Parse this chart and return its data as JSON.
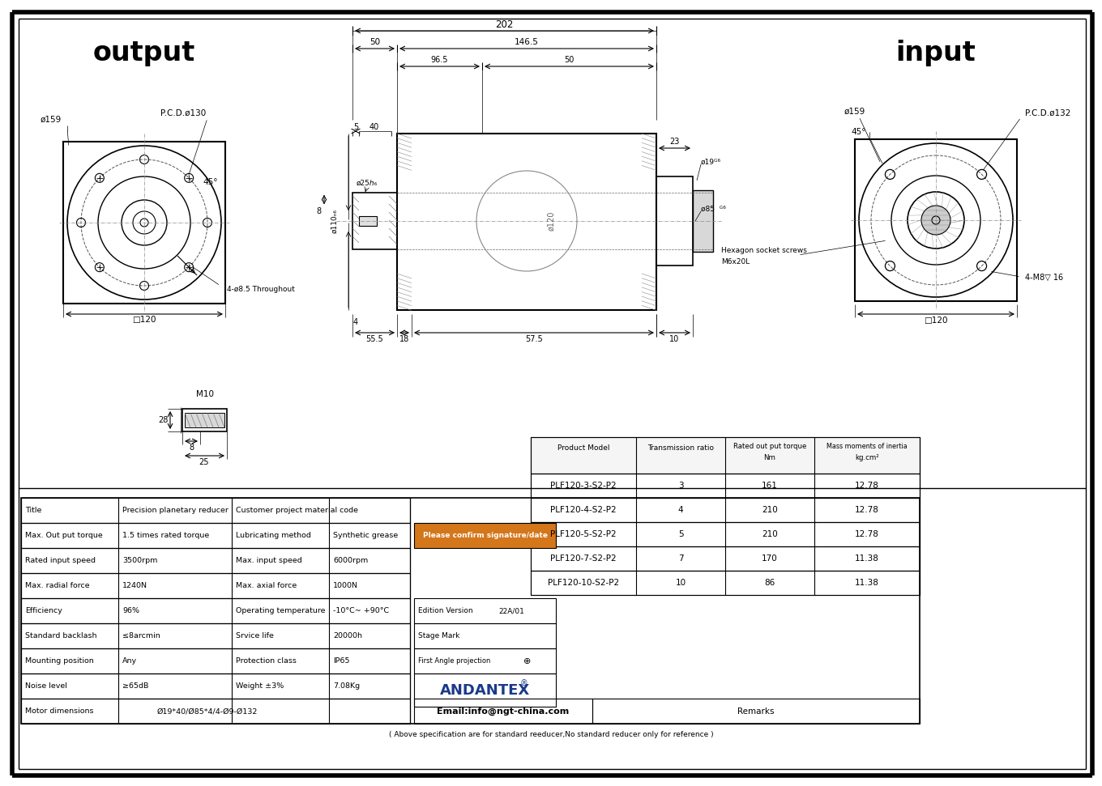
{
  "bg_color": "#ffffff",
  "output_label": "output",
  "input_label": "input",
  "orange_color": "#D4761A",
  "orange_text": "Please confirm signature/date",
  "table_rows": [
    [
      "PLF120-3-S2-P2",
      "3",
      "161",
      "12.78"
    ],
    [
      "PLF120-4-S2-P2",
      "4",
      "210",
      "12.78"
    ],
    [
      "PLF120-5-S2-P2",
      "5",
      "210",
      "12.78"
    ],
    [
      "PLF120-7-S2-P2",
      "7",
      "170",
      "11.38"
    ],
    [
      "PLF120-10-S2-P2",
      "10",
      "86",
      "11.38"
    ]
  ],
  "specs": [
    [
      "Title",
      "Precision planetary reducer",
      "Customer project material code",
      ""
    ],
    [
      "Max. Out put torque",
      "1.5 times rated torque",
      "Lubricating method",
      "Synthetic grease"
    ],
    [
      "Rated input speed",
      "3500rpm",
      "Max. input speed",
      "6000rpm"
    ],
    [
      "Max. radial force",
      "1240N",
      "Max. axial force",
      "1000N"
    ],
    [
      "Efficiency",
      "96%",
      "Operating temperature",
      "-10°C~ +90°C"
    ],
    [
      "Standard backlash",
      "≤8arcmin",
      "Srvice life",
      "20000h"
    ],
    [
      "Mounting position",
      "Any",
      "Protection class",
      "IP65"
    ],
    [
      "Noise level",
      "≥65dB",
      "Weight ±3%",
      "7.08Kg"
    ]
  ],
  "footer": "( Above specification are for standard reeducer,No standard reducer only for reference )"
}
